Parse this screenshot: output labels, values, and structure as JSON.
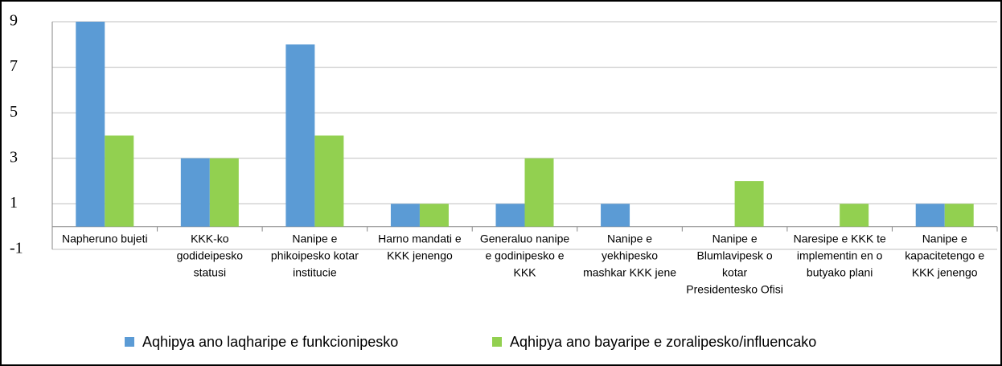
{
  "chart_data": {
    "type": "bar",
    "categories": [
      "Napheruno bujeti",
      "KKK-ko godideipesko statusi",
      "Nanipe e phikoipesko kotar institucie",
      "Harno mandati e KKK jenengo",
      "Generaluo nanipe e godinipesko e KKK",
      "Nanipe e yekhipesko mashkar KKK jene",
      "Nanipe e Blumlavipesk o kotar Presidentesko Ofisi",
      "Naresipe e KKK te implementin en o butyako plani",
      "Nanipe e kapacitetengo e KKK jenengo"
    ],
    "series": [
      {
        "name": "Aqhipya ano laqharipe e funkcionipesko",
        "color": "#5b9bd5",
        "values": [
          9,
          3,
          8,
          1,
          1,
          1,
          0,
          0,
          1
        ]
      },
      {
        "name": "Aqhipya ano bayaripe e zoralipesko/influencako",
        "color": "#92d050",
        "values": [
          4,
          3,
          4,
          1,
          3,
          0,
          2,
          1,
          1
        ]
      }
    ],
    "ylim": [
      -1,
      9
    ],
    "yticks": [
      -1,
      1,
      3,
      5,
      7,
      9
    ],
    "grid": true,
    "legend": "bottom"
  }
}
